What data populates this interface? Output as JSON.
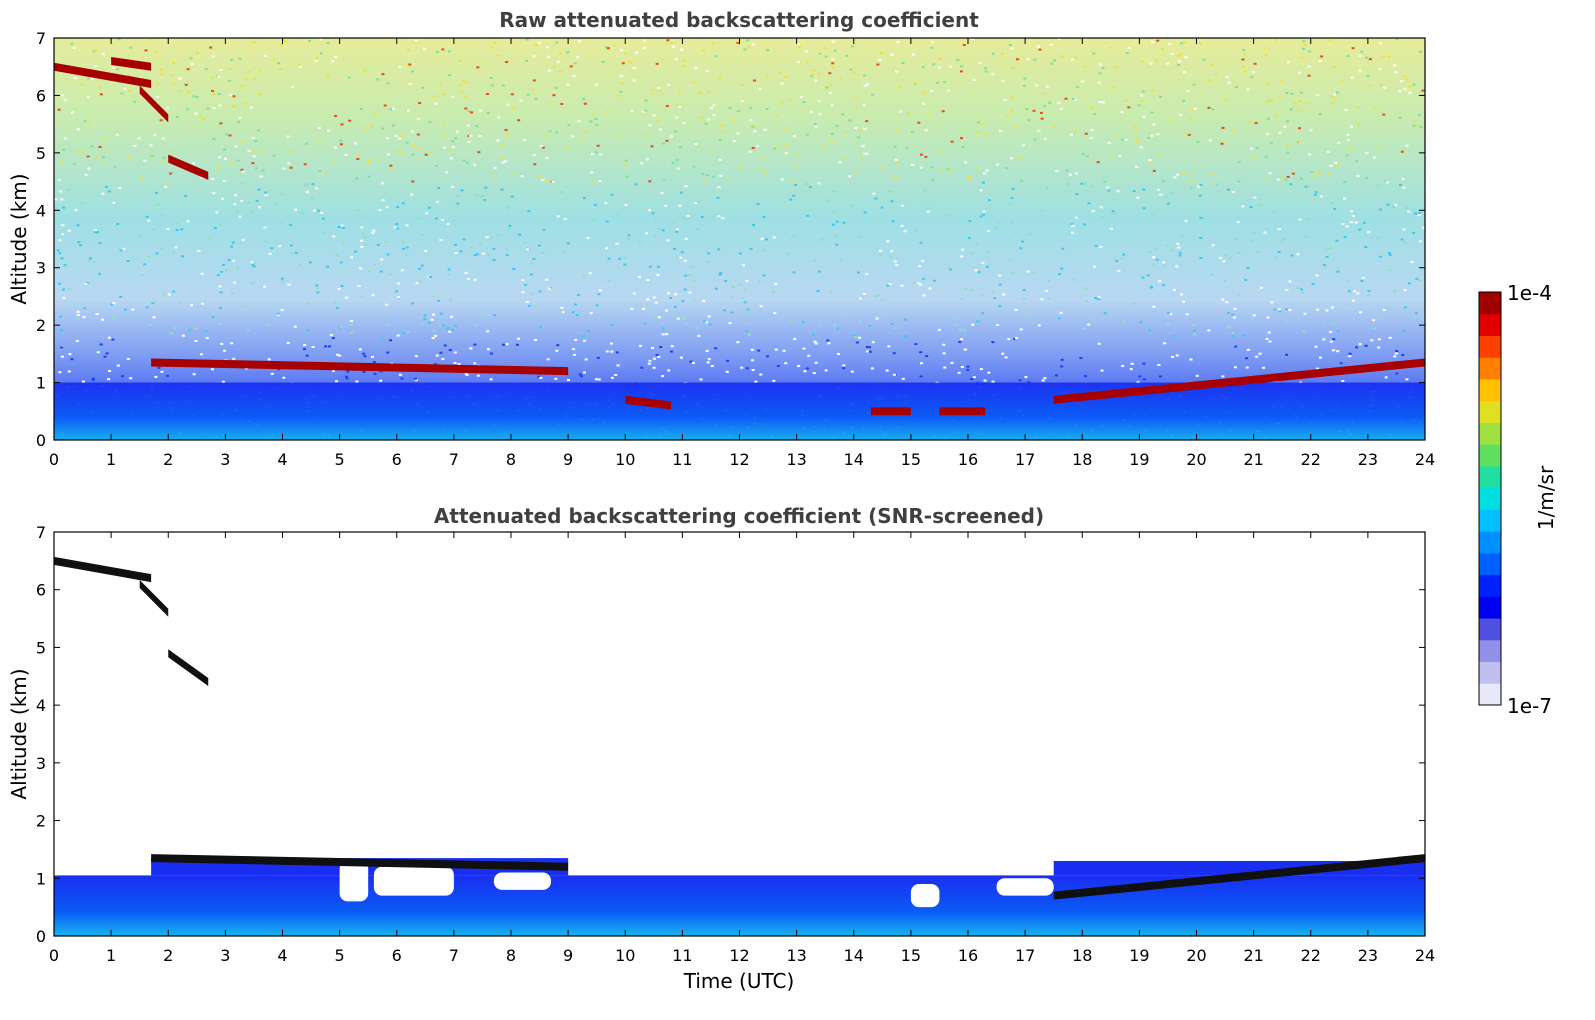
{
  "chart_data": [
    {
      "type": "heatmap",
      "title": "Raw attenuated backscattering coefficient",
      "xlabel": "",
      "ylabel": "Altitude (km)",
      "xlim": [
        0,
        24
      ],
      "ylim": [
        0,
        7
      ],
      "xticks": [
        0,
        1,
        2,
        3,
        4,
        5,
        6,
        7,
        8,
        9,
        10,
        11,
        12,
        13,
        14,
        15,
        16,
        17,
        18,
        19,
        20,
        21,
        22,
        23,
        24
      ],
      "yticks": [
        0,
        1,
        2,
        3,
        4,
        5,
        6,
        7
      ],
      "cloud_layers": [
        {
          "t_start": 0.0,
          "t_end": 1.7,
          "alt_start": 6.5,
          "alt_end": 6.2
        },
        {
          "t_start": 1.0,
          "t_end": 1.7,
          "alt_start": 6.6,
          "alt_end": 6.5
        },
        {
          "t_start": 1.5,
          "t_end": 2.0,
          "alt_start": 6.1,
          "alt_end": 5.6
        },
        {
          "t_start": 2.0,
          "t_end": 2.7,
          "alt_start": 4.9,
          "alt_end": 4.6
        },
        {
          "t_start": 1.7,
          "t_end": 9.0,
          "alt_start": 1.35,
          "alt_end": 1.2
        },
        {
          "t_start": 10.0,
          "t_end": 10.8,
          "alt_start": 0.7,
          "alt_end": 0.6
        },
        {
          "t_start": 14.3,
          "t_end": 15.0,
          "alt_start": 0.5,
          "alt_end": 0.5
        },
        {
          "t_start": 15.5,
          "t_end": 16.3,
          "alt_start": 0.5,
          "alt_end": 0.5
        },
        {
          "t_start": 17.5,
          "t_end": 24.0,
          "alt_start": 0.7,
          "alt_end": 1.35
        }
      ],
      "boundary_layer_top_km": 1.0
    },
    {
      "type": "heatmap",
      "title": "Attenuated backscattering coefficient (SNR-screened)",
      "xlabel": "Time (UTC)",
      "ylabel": "Altitude (km)",
      "xlim": [
        0,
        24
      ],
      "ylim": [
        0,
        7
      ],
      "xticks": [
        0,
        1,
        2,
        3,
        4,
        5,
        6,
        7,
        8,
        9,
        10,
        11,
        12,
        13,
        14,
        15,
        16,
        17,
        18,
        19,
        20,
        21,
        22,
        23,
        24
      ],
      "yticks": [
        0,
        1,
        2,
        3,
        4,
        5,
        6,
        7
      ],
      "cloud_layers": [
        {
          "t_start": 0.0,
          "t_end": 1.7,
          "alt_start": 6.5,
          "alt_end": 6.2
        },
        {
          "t_start": 1.5,
          "t_end": 2.0,
          "alt_start": 6.1,
          "alt_end": 5.6
        },
        {
          "t_start": 2.0,
          "t_end": 2.7,
          "alt_start": 4.9,
          "alt_end": 4.4
        },
        {
          "t_start": 1.7,
          "t_end": 9.0,
          "alt_start": 1.35,
          "alt_end": 1.2
        },
        {
          "t_start": 17.5,
          "t_end": 24.0,
          "alt_start": 0.7,
          "alt_end": 1.35
        }
      ],
      "screened_gaps": [
        {
          "t_start": 5.0,
          "t_end": 5.5,
          "alt_low": 0.6,
          "alt_high": 1.3
        },
        {
          "t_start": 5.6,
          "t_end": 7.0,
          "alt_low": 0.7,
          "alt_high": 1.2
        },
        {
          "t_start": 7.7,
          "t_end": 8.7,
          "alt_low": 0.8,
          "alt_high": 1.1
        },
        {
          "t_start": 15.0,
          "t_end": 15.5,
          "alt_low": 0.5,
          "alt_high": 0.9
        },
        {
          "t_start": 16.5,
          "t_end": 17.5,
          "alt_low": 0.7,
          "alt_high": 1.0
        }
      ]
    }
  ],
  "colorbar": {
    "label": "1/m/sr",
    "max_label": "1e-4",
    "min_label": "1e-7",
    "colors": [
      "#e8e8f8",
      "#c0c0f0",
      "#9090e8",
      "#5050e0",
      "#0000f0",
      "#0020ff",
      "#0060ff",
      "#0090ff",
      "#00c0ff",
      "#00e0e0",
      "#20e0a0",
      "#60e060",
      "#a0e040",
      "#e0e020",
      "#ffc000",
      "#ff8000",
      "#ff4000",
      "#e00000",
      "#a00000"
    ]
  },
  "colors": {
    "noise_high": "#d0e080",
    "noise_mid": "#40d0e0",
    "noise_low": "#0030ff",
    "cloud": "#a80000",
    "boundary": "#0a3cf0"
  }
}
